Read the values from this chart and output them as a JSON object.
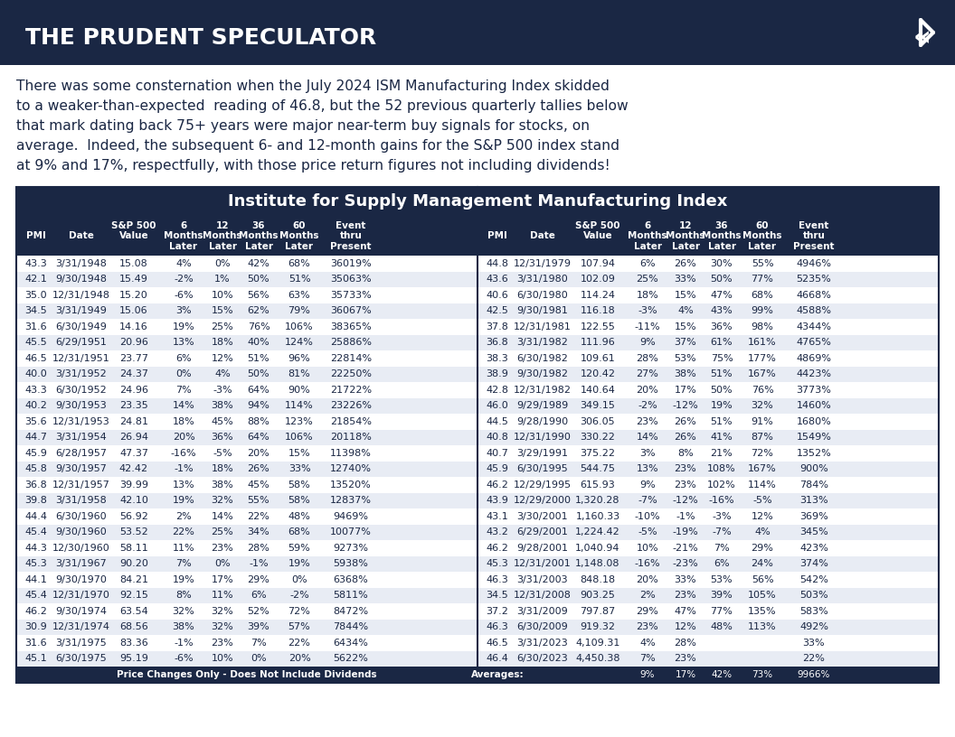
{
  "header_bg": "#1a2744",
  "header_text": "#ffffff",
  "title_text": "THE PRUDENT SPECULATOR",
  "description": "There was some consternation when the July 2024 ISM Manufacturing Index skiddedto a weaker-than-expected reading of 46.8, but the 52 previous quarterly tallies belowthat mark dating back 75+ years were major near-term buy signals for stocks, onaverage. Indeed, the subsequent 6- and 12-month gains for the S&P 500 index standat 9% and 17%, respectfully, with those price return figures not including dividends!",
  "table_title": "Institute for Supply Management Manufacturing Index",
  "table_bg": "#1a2744",
  "row_bg_odd": "#ffffff",
  "row_bg_even": "#e8ecf4",
  "col_headers_line1": [
    "",
    "",
    "S&P 500",
    "6\nMonths",
    "12\nMonths",
    "36\nMonths",
    "60\nMonths",
    "Event\nthru"
  ],
  "col_headers_line2": [
    "PMI",
    "Date",
    "Value",
    "Later",
    "Later",
    "Later",
    "Later",
    "Present"
  ],
  "footer_left": "Price Changes Only - Does Not Include Dividends",
  "footer_right": "Averages:    9%   17%   42%   73%   9966%",
  "left_data": [
    [
      "43.3",
      "3/31/1948",
      "15.08",
      "4%",
      "0%",
      "42%",
      "68%",
      "36019%"
    ],
    [
      "42.1",
      "9/30/1948",
      "15.49",
      "-2%",
      "1%",
      "50%",
      "51%",
      "35063%"
    ],
    [
      "35.0",
      "12/31/1948",
      "15.20",
      "-6%",
      "10%",
      "56%",
      "63%",
      "35733%"
    ],
    [
      "34.5",
      "3/31/1949",
      "15.06",
      "3%",
      "15%",
      "62%",
      "79%",
      "36067%"
    ],
    [
      "31.6",
      "6/30/1949",
      "14.16",
      "19%",
      "25%",
      "76%",
      "106%",
      "38365%"
    ],
    [
      "45.5",
      "6/29/1951",
      "20.96",
      "13%",
      "18%",
      "40%",
      "124%",
      "25886%"
    ],
    [
      "46.5",
      "12/31/1951",
      "23.77",
      "6%",
      "12%",
      "51%",
      "96%",
      "22814%"
    ],
    [
      "40.0",
      "3/31/1952",
      "24.37",
      "0%",
      "4%",
      "50%",
      "81%",
      "22250%"
    ],
    [
      "43.3",
      "6/30/1952",
      "24.96",
      "7%",
      "-3%",
      "64%",
      "90%",
      "21722%"
    ],
    [
      "40.2",
      "9/30/1953",
      "23.35",
      "14%",
      "38%",
      "94%",
      "114%",
      "23226%"
    ],
    [
      "35.6",
      "12/31/1953",
      "24.81",
      "18%",
      "45%",
      "88%",
      "123%",
      "21854%"
    ],
    [
      "44.7",
      "3/31/1954",
      "26.94",
      "20%",
      "36%",
      "64%",
      "106%",
      "20118%"
    ],
    [
      "45.9",
      "6/28/1957",
      "47.37",
      "-16%",
      "-5%",
      "20%",
      "15%",
      "11398%"
    ],
    [
      "45.8",
      "9/30/1957",
      "42.42",
      "-1%",
      "18%",
      "26%",
      "33%",
      "12740%"
    ],
    [
      "36.8",
      "12/31/1957",
      "39.99",
      "13%",
      "38%",
      "45%",
      "58%",
      "13520%"
    ],
    [
      "39.8",
      "3/31/1958",
      "42.10",
      "19%",
      "32%",
      "55%",
      "58%",
      "12837%"
    ],
    [
      "44.4",
      "6/30/1960",
      "56.92",
      "2%",
      "14%",
      "22%",
      "48%",
      "9469%"
    ],
    [
      "45.4",
      "9/30/1960",
      "53.52",
      "22%",
      "25%",
      "34%",
      "68%",
      "10077%"
    ],
    [
      "44.3",
      "12/30/1960",
      "58.11",
      "11%",
      "23%",
      "28%",
      "59%",
      "9273%"
    ],
    [
      "45.3",
      "3/31/1967",
      "90.20",
      "7%",
      "0%",
      "-1%",
      "19%",
      "5938%"
    ],
    [
      "44.1",
      "9/30/1970",
      "84.21",
      "19%",
      "17%",
      "29%",
      "0%",
      "6368%"
    ],
    [
      "45.4",
      "12/31/1970",
      "92.15",
      "8%",
      "11%",
      "6%",
      "-2%",
      "5811%"
    ],
    [
      "46.2",
      "9/30/1974",
      "63.54",
      "32%",
      "32%",
      "52%",
      "72%",
      "8472%"
    ],
    [
      "30.9",
      "12/31/1974",
      "68.56",
      "38%",
      "32%",
      "39%",
      "57%",
      "7844%"
    ],
    [
      "31.6",
      "3/31/1975",
      "83.36",
      "-1%",
      "23%",
      "7%",
      "22%",
      "6434%"
    ],
    [
      "45.1",
      "6/30/1975",
      "95.19",
      "-6%",
      "10%",
      "0%",
      "20%",
      "5622%"
    ]
  ],
  "right_data": [
    [
      "44.8",
      "12/31/1979",
      "107.94",
      "6%",
      "26%",
      "30%",
      "55%",
      "4946%"
    ],
    [
      "43.6",
      "3/31/1980",
      "102.09",
      "25%",
      "33%",
      "50%",
      "77%",
      "5235%"
    ],
    [
      "40.6",
      "6/30/1980",
      "114.24",
      "18%",
      "15%",
      "47%",
      "68%",
      "4668%"
    ],
    [
      "42.5",
      "9/30/1981",
      "116.18",
      "-3%",
      "4%",
      "43%",
      "99%",
      "4588%"
    ],
    [
      "37.8",
      "12/31/1981",
      "122.55",
      "-11%",
      "15%",
      "36%",
      "98%",
      "4344%"
    ],
    [
      "36.8",
      "3/31/1982",
      "111.96",
      "9%",
      "37%",
      "61%",
      "161%",
      "4765%"
    ],
    [
      "38.3",
      "6/30/1982",
      "109.61",
      "28%",
      "53%",
      "75%",
      "177%",
      "4869%"
    ],
    [
      "38.9",
      "9/30/1982",
      "120.42",
      "27%",
      "38%",
      "51%",
      "167%",
      "4423%"
    ],
    [
      "42.8",
      "12/31/1982",
      "140.64",
      "20%",
      "17%",
      "50%",
      "76%",
      "3773%"
    ],
    [
      "46.0",
      "9/29/1989",
      "349.15",
      "-2%",
      "-12%",
      "19%",
      "32%",
      "1460%"
    ],
    [
      "44.5",
      "9/28/1990",
      "306.05",
      "23%",
      "26%",
      "51%",
      "91%",
      "1680%"
    ],
    [
      "40.8",
      "12/31/1990",
      "330.22",
      "14%",
      "26%",
      "41%",
      "87%",
      "1549%"
    ],
    [
      "40.7",
      "3/29/1991",
      "375.22",
      "3%",
      "8%",
      "21%",
      "72%",
      "1352%"
    ],
    [
      "45.9",
      "6/30/1995",
      "544.75",
      "13%",
      "23%",
      "108%",
      "167%",
      "900%"
    ],
    [
      "46.2",
      "12/29/1995",
      "615.93",
      "9%",
      "23%",
      "102%",
      "114%",
      "784%"
    ],
    [
      "43.9",
      "12/29/2000",
      "1,320.28",
      "-7%",
      "-12%",
      "-16%",
      "-5%",
      "313%"
    ],
    [
      "43.1",
      "3/30/2001",
      "1,160.33",
      "-10%",
      "-1%",
      "-3%",
      "12%",
      "369%"
    ],
    [
      "43.2",
      "6/29/2001",
      "1,224.42",
      "-5%",
      "-19%",
      "-7%",
      "4%",
      "345%"
    ],
    [
      "46.2",
      "9/28/2001",
      "1,040.94",
      "10%",
      "-21%",
      "7%",
      "29%",
      "423%"
    ],
    [
      "45.3",
      "12/31/2001",
      "1,148.08",
      "-16%",
      "-23%",
      "6%",
      "24%",
      "374%"
    ],
    [
      "46.3",
      "3/31/2003",
      "848.18",
      "20%",
      "33%",
      "53%",
      "56%",
      "542%"
    ],
    [
      "34.5",
      "12/31/2008",
      "903.25",
      "2%",
      "23%",
      "39%",
      "105%",
      "503%"
    ],
    [
      "37.2",
      "3/31/2009",
      "797.87",
      "29%",
      "47%",
      "77%",
      "135%",
      "583%"
    ],
    [
      "46.3",
      "6/30/2009",
      "919.32",
      "23%",
      "12%",
      "48%",
      "113%",
      "492%"
    ],
    [
      "46.5",
      "3/31/2023",
      "4,109.31",
      "4%",
      "28%",
      "",
      "",
      "33%"
    ],
    [
      "46.4",
      "6/30/2023",
      "4,450.38",
      "7%",
      "23%",
      "",
      "",
      "22%"
    ]
  ],
  "averages": [
    "9%",
    "17%",
    "42%",
    "73%",
    "9966%"
  ]
}
